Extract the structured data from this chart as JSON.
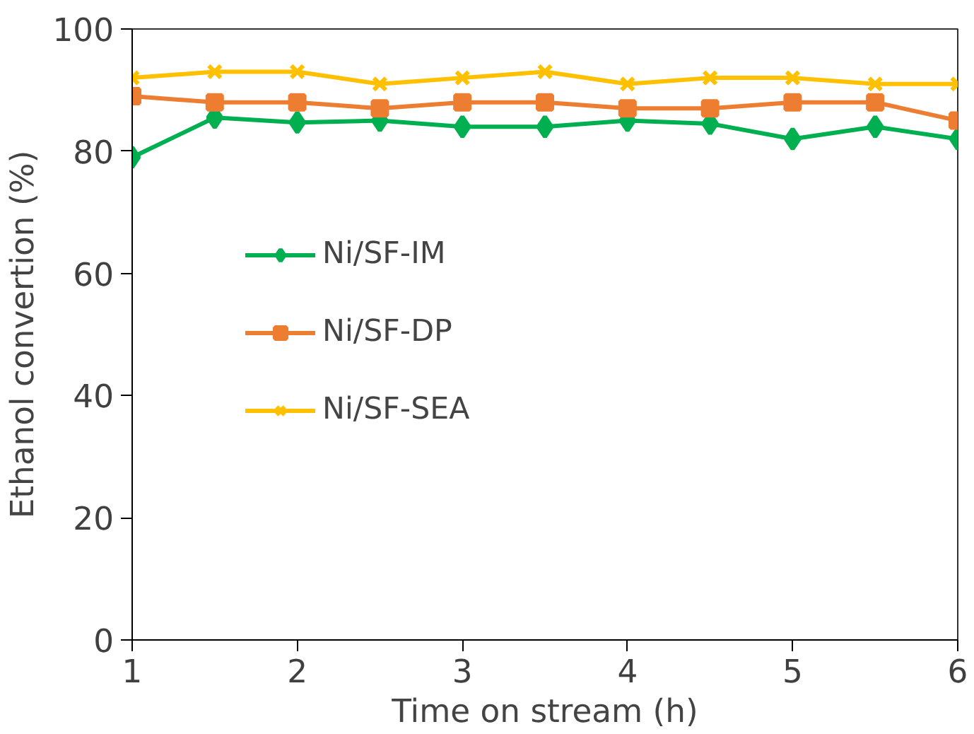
{
  "chart_data": {
    "type": "line",
    "xlabel": "Time on stream (h)",
    "ylabel": "Ethanol convertion (%)",
    "x": [
      1,
      1.5,
      2,
      2.5,
      3,
      3.5,
      4,
      4.5,
      5,
      5.5,
      6
    ],
    "xlim": [
      1,
      6
    ],
    "xticks": [
      1,
      2,
      3,
      4,
      5,
      6
    ],
    "ylim": [
      0,
      100
    ],
    "yticks": [
      0,
      20,
      40,
      60,
      80,
      100
    ],
    "grid": false,
    "legend": "left",
    "series": [
      {
        "name": "Ni/SF-IM",
        "color": "#00b050",
        "marker": "diamond",
        "values": [
          79,
          85.5,
          84.7,
          85,
          84,
          84,
          85,
          84.5,
          82,
          84,
          82
        ]
      },
      {
        "name": "Ni/SF-DP",
        "color": "#ed7d31",
        "marker": "square",
        "values": [
          89,
          88,
          88,
          87,
          88,
          88,
          87,
          87,
          88,
          88,
          85
        ]
      },
      {
        "name": "Ni/SF-SEA",
        "color": "#ffc000",
        "marker": "x",
        "values": [
          92,
          93,
          93,
          91,
          92,
          93,
          91,
          92,
          92,
          91,
          91
        ]
      }
    ]
  }
}
